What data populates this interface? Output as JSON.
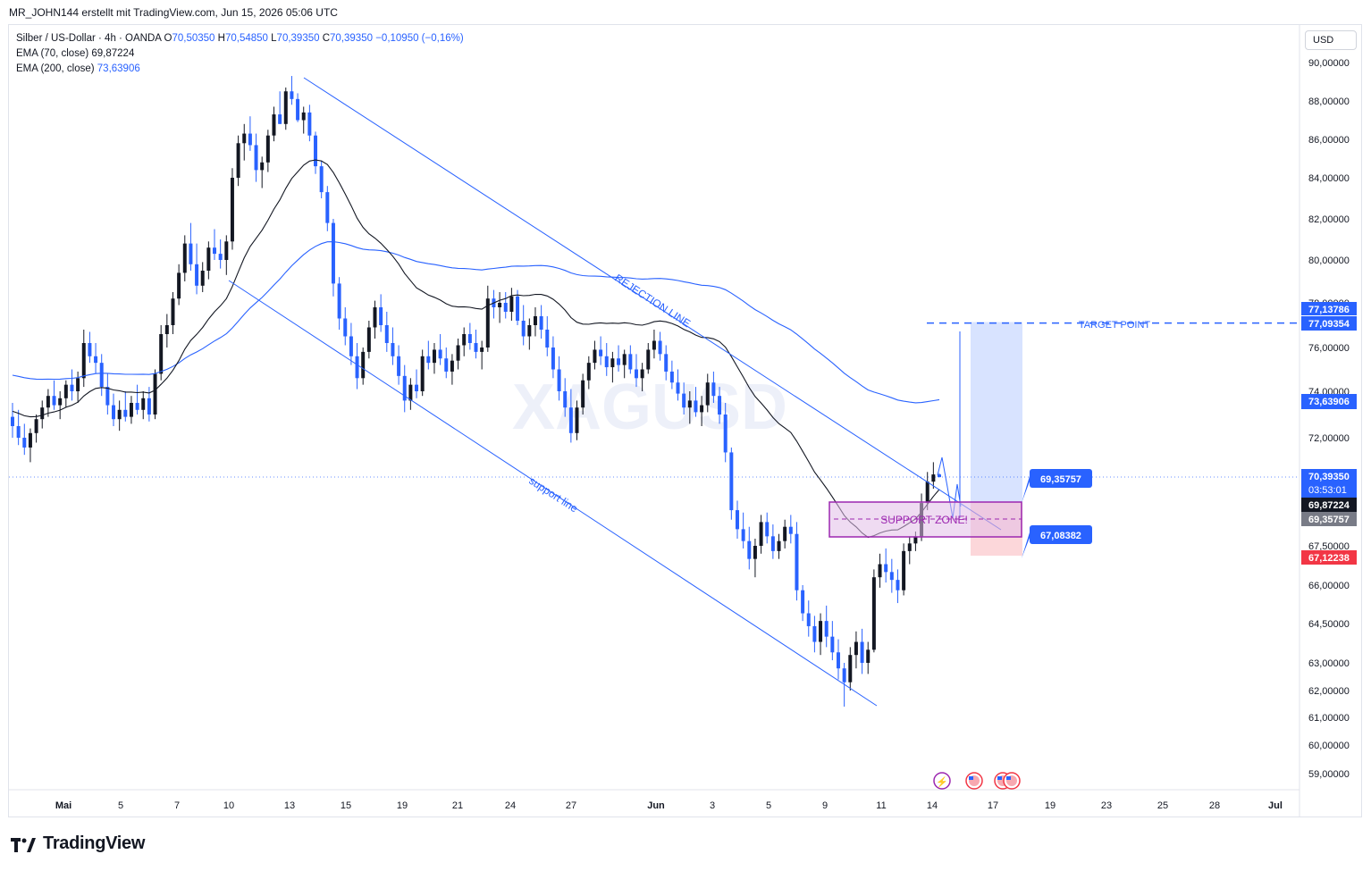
{
  "header": {
    "attribution": "MR_JOHN144 erstellt mit TradingView.com, Jun 15, 2026 05:06 UTC"
  },
  "legend": {
    "symbol": "Silber / US-Dollar · 4h · OANDA",
    "o_label": "O",
    "o_value": "70,50350",
    "h_label": "H",
    "h_value": "70,54850",
    "l_label": "L",
    "l_value": "70,39350",
    "c_label": "C",
    "c_value": "70,39350",
    "change": "−0,10950 (−0,16%)",
    "ema70_label": "EMA (70, close)",
    "ema70_value": "69,87224",
    "ema200_label": "EMA (200, close)",
    "ema200_value": "73,63906"
  },
  "currency": "USD",
  "branding": {
    "logo_text": "TradingView"
  },
  "chart_data": {
    "type": "candlestick",
    "title": "Silber / US-Dollar · 4h · OANDA",
    "watermark": "XAGUSD",
    "price_axis": {
      "ticks": [
        "90,00000",
        "88,00000",
        "86,00000",
        "84,00000",
        "82,00000",
        "80,00000",
        "78,00000",
        "76,00000",
        "74,00000",
        "72,00000",
        "67,50000",
        "66,00000",
        "64,50000",
        "63,00000",
        "62,00000",
        "61,00000",
        "60,00000",
        "59,00000"
      ],
      "tick_values": [
        90,
        88,
        86,
        84,
        82,
        80,
        78,
        76,
        74,
        72,
        67.5,
        66,
        64.5,
        63,
        62,
        61,
        60,
        59
      ]
    },
    "time_axis": {
      "labels": [
        "Mai",
        "5",
        "7",
        "10",
        "13",
        "15",
        "19",
        "21",
        "24",
        "27",
        "Jun",
        "3",
        "5",
        "9",
        "11",
        "14",
        "17",
        "19",
        "23",
        "25",
        "28",
        "Jul"
      ],
      "bold": [
        "Mai",
        "Jun",
        "Jul"
      ]
    },
    "price_labels": [
      {
        "text": "77,13786",
        "value": 77.13786,
        "color": "#2962ff"
      },
      {
        "text": "77,09354",
        "value": 77.09354,
        "color": "#2962ff"
      },
      {
        "text": "73,63906",
        "value": 73.63906,
        "color": "#2962ff"
      },
      {
        "text": "70,39350",
        "sub": "03:53:01",
        "value": 70.3935,
        "color": "#2962ff"
      },
      {
        "text": "69,87224",
        "value": 69.87224,
        "color": "#131722"
      },
      {
        "text": "69,35757",
        "value": 69.35757,
        "color": "#787b86"
      },
      {
        "text": "67,12238",
        "value": 67.12238,
        "color": "#f23645"
      }
    ],
    "annotations": {
      "rejection_line": "REJECTION LINE",
      "support_line": "support line",
      "support_zone": "SUPPORT ZONE!",
      "target_point": "TARGET POINT",
      "entry_callout": "69,35757",
      "stop_callout": "67,08382"
    },
    "series": [
      {
        "name": "EMA (70, close)",
        "color": "#131722",
        "last": 69.87224
      },
      {
        "name": "EMA (200, close)",
        "color": "#2962ff",
        "last": 73.63906
      }
    ],
    "candles": [
      [
        72.9,
        73.5,
        72.0,
        72.5
      ],
      [
        72.5,
        73.2,
        71.7,
        72.0
      ],
      [
        72.0,
        72.6,
        71.3,
        71.6
      ],
      [
        71.6,
        72.4,
        71.0,
        72.2
      ],
      [
        72.2,
        73.0,
        71.8,
        72.8
      ],
      [
        72.8,
        73.6,
        72.4,
        73.3
      ],
      [
        73.3,
        74.1,
        72.9,
        73.8
      ],
      [
        73.8,
        74.5,
        73.2,
        73.4
      ],
      [
        73.4,
        74.0,
        72.8,
        73.7
      ],
      [
        73.7,
        74.5,
        73.3,
        74.3
      ],
      [
        74.3,
        75.0,
        73.6,
        74.0
      ],
      [
        74.0,
        74.9,
        73.5,
        74.6
      ],
      [
        74.6,
        76.8,
        74.2,
        76.2
      ],
      [
        76.2,
        76.7,
        75.3,
        75.6
      ],
      [
        75.6,
        76.2,
        74.8,
        75.3
      ],
      [
        75.3,
        75.7,
        73.8,
        74.2
      ],
      [
        74.2,
        74.8,
        73.0,
        73.4
      ],
      [
        73.4,
        73.9,
        72.5,
        72.8
      ],
      [
        72.8,
        73.6,
        72.3,
        73.2
      ],
      [
        73.2,
        74.0,
        72.7,
        72.9
      ],
      [
        72.9,
        73.8,
        72.6,
        73.5
      ],
      [
        73.5,
        74.3,
        73.0,
        73.2
      ],
      [
        73.2,
        74.0,
        72.8,
        73.7
      ],
      [
        73.7,
        74.2,
        72.7,
        73.0
      ],
      [
        73.0,
        75.0,
        72.8,
        74.8
      ],
      [
        74.8,
        77.0,
        74.5,
        76.6
      ],
      [
        76.6,
        77.5,
        76.0,
        77.0
      ],
      [
        77.0,
        78.5,
        76.6,
        78.2
      ],
      [
        78.2,
        79.8,
        77.9,
        79.4
      ],
      [
        79.4,
        81.2,
        79.0,
        80.8
      ],
      [
        80.8,
        81.8,
        79.5,
        79.8
      ],
      [
        79.8,
        80.8,
        78.4,
        78.8
      ],
      [
        78.8,
        79.9,
        78.5,
        79.5
      ],
      [
        79.5,
        80.9,
        79.1,
        80.6
      ],
      [
        80.6,
        81.5,
        80.0,
        80.3
      ],
      [
        80.3,
        81.0,
        79.6,
        80.0
      ],
      [
        80.0,
        81.2,
        79.3,
        80.9
      ],
      [
        80.9,
        84.5,
        80.5,
        84.0
      ],
      [
        84.0,
        86.2,
        83.6,
        85.8
      ],
      [
        85.8,
        86.8,
        84.9,
        86.3
      ],
      [
        86.3,
        87.2,
        85.4,
        85.7
      ],
      [
        85.7,
        86.3,
        83.8,
        84.4
      ],
      [
        84.4,
        85.1,
        83.5,
        84.8
      ],
      [
        84.8,
        86.5,
        84.3,
        86.2
      ],
      [
        86.2,
        87.7,
        85.9,
        87.3
      ],
      [
        87.3,
        88.5,
        86.8,
        86.8
      ],
      [
        86.8,
        88.7,
        86.5,
        88.5
      ],
      [
        88.5,
        89.3,
        87.8,
        88.1
      ],
      [
        88.1,
        88.4,
        86.9,
        87.0
      ],
      [
        87.0,
        87.7,
        86.3,
        87.4
      ],
      [
        87.4,
        87.8,
        85.9,
        86.2
      ],
      [
        86.2,
        86.4,
        84.2,
        84.6
      ],
      [
        84.6,
        84.9,
        83.0,
        83.3
      ],
      [
        83.3,
        83.6,
        81.4,
        81.8
      ],
      [
        81.8,
        82.0,
        78.3,
        78.9
      ],
      [
        78.9,
        79.2,
        76.8,
        77.3
      ],
      [
        77.3,
        77.8,
        76.1,
        76.5
      ],
      [
        76.5,
        77.1,
        75.2,
        75.6
      ],
      [
        75.6,
        76.2,
        74.1,
        74.6
      ],
      [
        74.6,
        76.0,
        74.3,
        75.8
      ],
      [
        75.8,
        77.2,
        75.5,
        76.9
      ],
      [
        76.9,
        78.1,
        76.4,
        77.8
      ],
      [
        77.8,
        78.4,
        76.7,
        77.0
      ],
      [
        77.0,
        77.6,
        75.8,
        76.2
      ],
      [
        76.2,
        76.9,
        75.2,
        75.6
      ],
      [
        75.6,
        76.1,
        74.3,
        74.7
      ],
      [
        74.7,
        75.2,
        73.1,
        73.6
      ],
      [
        73.6,
        74.6,
        73.2,
        74.3
      ],
      [
        74.3,
        75.0,
        73.7,
        74.0
      ],
      [
        74.0,
        75.9,
        73.8,
        75.6
      ],
      [
        75.6,
        76.3,
        75.0,
        75.3
      ],
      [
        75.3,
        76.2,
        74.8,
        75.9
      ],
      [
        75.9,
        76.6,
        75.2,
        75.5
      ],
      [
        75.5,
        76.0,
        74.6,
        74.9
      ],
      [
        74.9,
        75.7,
        74.3,
        75.4
      ],
      [
        75.4,
        76.4,
        75.0,
        76.1
      ],
      [
        76.1,
        76.9,
        75.6,
        76.6
      ],
      [
        76.6,
        77.1,
        75.9,
        76.2
      ],
      [
        76.2,
        76.8,
        75.5,
        75.8
      ],
      [
        75.8,
        76.3,
        75.0,
        76.0
      ],
      [
        76.0,
        78.8,
        75.8,
        78.2
      ],
      [
        78.2,
        78.6,
        77.3,
        77.8
      ],
      [
        77.8,
        78.5,
        77.1,
        78.0
      ],
      [
        78.0,
        78.5,
        77.3,
        77.6
      ],
      [
        77.6,
        78.7,
        77.2,
        78.3
      ],
      [
        78.3,
        78.6,
        77.0,
        77.2
      ],
      [
        77.2,
        77.9,
        76.1,
        76.5
      ],
      [
        76.5,
        77.3,
        75.9,
        77.0
      ],
      [
        77.0,
        77.8,
        76.5,
        77.4
      ],
      [
        77.4,
        77.9,
        76.4,
        76.8
      ],
      [
        76.8,
        77.4,
        75.6,
        76.0
      ],
      [
        76.0,
        76.5,
        74.6,
        75.0
      ],
      [
        75.0,
        75.6,
        73.6,
        74.0
      ],
      [
        74.0,
        74.6,
        72.9,
        73.3
      ],
      [
        73.3,
        74.1,
        71.8,
        72.2
      ],
      [
        72.2,
        73.6,
        71.9,
        73.3
      ],
      [
        73.3,
        74.8,
        73.0,
        74.5
      ],
      [
        74.5,
        75.6,
        74.1,
        75.3
      ],
      [
        75.3,
        76.3,
        75.0,
        75.9
      ],
      [
        75.9,
        76.5,
        75.2,
        75.6
      ],
      [
        75.6,
        76.2,
        74.7,
        75.1
      ],
      [
        75.1,
        75.8,
        74.4,
        75.5
      ],
      [
        75.5,
        76.1,
        74.9,
        75.2
      ],
      [
        75.2,
        75.9,
        74.6,
        75.7
      ],
      [
        75.7,
        76.1,
        74.8,
        75.0
      ],
      [
        75.0,
        75.7,
        74.2,
        74.6
      ],
      [
        74.6,
        75.3,
        74.0,
        75.0
      ],
      [
        75.0,
        76.2,
        74.8,
        75.9
      ],
      [
        75.9,
        76.8,
        75.5,
        76.3
      ],
      [
        76.3,
        76.7,
        75.4,
        75.7
      ],
      [
        75.7,
        76.1,
        74.5,
        74.9
      ],
      [
        74.9,
        75.4,
        74.1,
        74.4
      ],
      [
        74.4,
        75.0,
        73.6,
        73.9
      ],
      [
        73.9,
        74.4,
        73.0,
        73.3
      ],
      [
        73.3,
        74.0,
        72.6,
        73.6
      ],
      [
        73.6,
        74.2,
        72.9,
        73.1
      ],
      [
        73.1,
        73.8,
        72.5,
        73.4
      ],
      [
        73.4,
        74.8,
        73.1,
        74.4
      ],
      [
        74.4,
        74.9,
        73.5,
        73.8
      ],
      [
        73.8,
        74.2,
        72.6,
        73.0
      ],
      [
        73.0,
        73.5,
        71.0,
        71.4
      ],
      [
        71.4,
        71.6,
        68.6,
        69.0
      ],
      [
        69.0,
        69.4,
        67.8,
        68.2
      ],
      [
        68.2,
        68.9,
        67.4,
        67.7
      ],
      [
        67.7,
        68.3,
        66.6,
        67.0
      ],
      [
        67.0,
        67.8,
        66.3,
        67.5
      ],
      [
        67.5,
        68.8,
        67.2,
        68.5
      ],
      [
        68.5,
        68.9,
        67.6,
        67.9
      ],
      [
        67.9,
        68.4,
        67.0,
        67.3
      ],
      [
        67.3,
        68.0,
        67.0,
        67.7
      ],
      [
        67.7,
        68.6,
        67.4,
        68.3
      ],
      [
        68.3,
        68.8,
        67.6,
        68.0
      ],
      [
        68.0,
        68.5,
        65.4,
        65.8
      ],
      [
        65.8,
        66.0,
        64.6,
        64.9
      ],
      [
        64.9,
        65.4,
        64.0,
        64.4
      ],
      [
        64.4,
        64.8,
        63.4,
        63.8
      ],
      [
        63.8,
        64.9,
        63.3,
        64.6
      ],
      [
        64.6,
        65.2,
        63.6,
        64.0
      ],
      [
        64.0,
        64.6,
        63.1,
        63.4
      ],
      [
        63.4,
        63.9,
        62.4,
        62.8
      ],
      [
        62.8,
        63.0,
        61.4,
        62.3
      ],
      [
        62.3,
        63.6,
        62.0,
        63.3
      ],
      [
        63.3,
        64.2,
        62.8,
        63.8
      ],
      [
        63.8,
        64.3,
        62.6,
        63.0
      ],
      [
        63.0,
        63.8,
        62.6,
        63.5
      ],
      [
        63.5,
        66.6,
        63.4,
        66.3
      ],
      [
        66.3,
        67.2,
        65.9,
        66.8
      ],
      [
        66.8,
        67.4,
        66.1,
        66.5
      ],
      [
        66.5,
        67.0,
        65.7,
        66.2
      ],
      [
        66.2,
        66.6,
        65.3,
        65.8
      ],
      [
        65.8,
        67.6,
        65.6,
        67.3
      ],
      [
        67.3,
        67.9,
        66.8,
        67.6
      ],
      [
        67.6,
        68.1,
        67.3,
        67.9
      ],
      [
        67.9,
        69.7,
        67.7,
        69.3
      ],
      [
        69.3,
        70.6,
        69.0,
        70.2
      ],
      [
        70.2,
        71.0,
        69.9,
        70.5
      ],
      [
        70.5,
        70.55,
        70.39,
        70.39
      ]
    ]
  }
}
